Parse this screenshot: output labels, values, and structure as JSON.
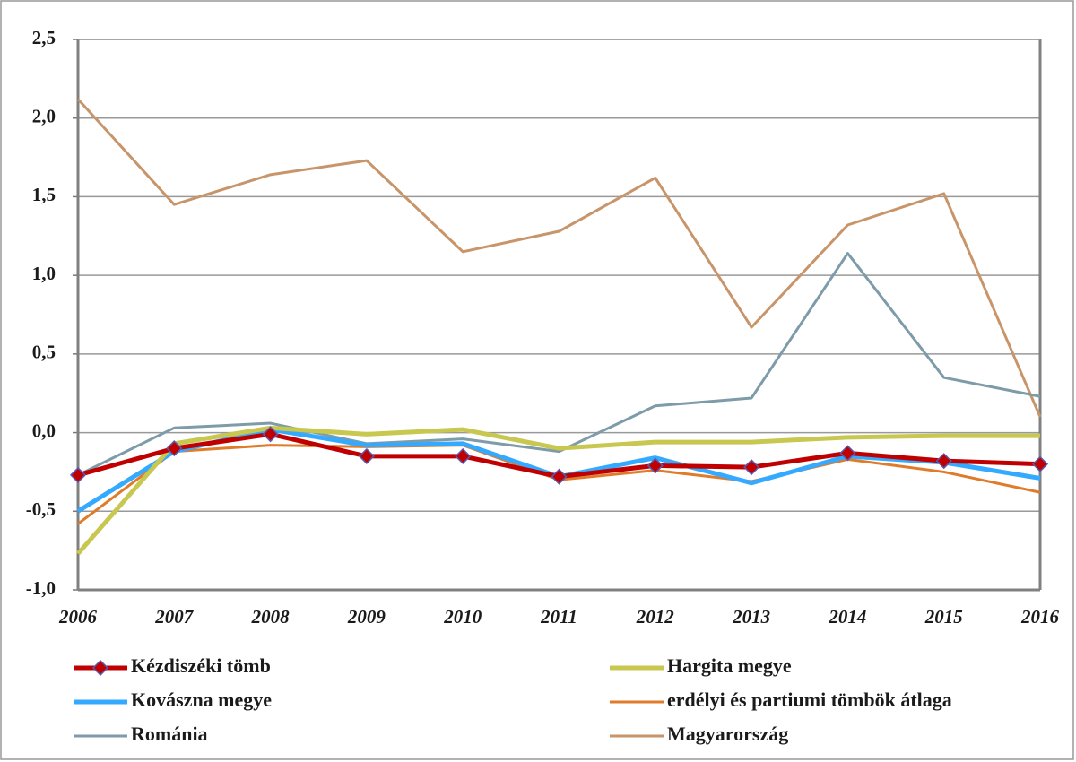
{
  "chart_data": {
    "type": "line",
    "categories": [
      "2006",
      "2007",
      "2008",
      "2009",
      "2010",
      "2011",
      "2012",
      "2013",
      "2014",
      "2015",
      "2016"
    ],
    "ylim": [
      -1.0,
      2.5
    ],
    "yticks": [
      {
        "value": -1.0,
        "label": "-1,0"
      },
      {
        "value": -0.5,
        "label": "-0,5"
      },
      {
        "value": 0,
        "label": "0,0"
      },
      {
        "value": 0.5,
        "label": "0,5"
      },
      {
        "value": 1.0,
        "label": "1,0"
      },
      {
        "value": 1.5,
        "label": "1,5"
      },
      {
        "value": 2.0,
        "label": "2,0"
      },
      {
        "value": 2.5,
        "label": "2,5"
      }
    ],
    "grid": true,
    "legend": "bottom",
    "series": [
      {
        "name": "Kézdiszéki tömb",
        "color": "#c00000",
        "marker": "diamond",
        "values": [
          -0.27,
          -0.1,
          -0.01,
          -0.15,
          -0.15,
          -0.28,
          -0.21,
          -0.22,
          -0.13,
          -0.18,
          -0.2
        ]
      },
      {
        "name": "Hargita megye",
        "color": "#c8c850",
        "values": [
          -0.77,
          -0.07,
          0.03,
          -0.01,
          0.02,
          -0.1,
          -0.06,
          -0.06,
          -0.03,
          -0.02,
          -0.02
        ]
      },
      {
        "name": "Kovászna megye",
        "color": "#33aaff",
        "values": [
          -0.5,
          -0.12,
          0.02,
          -0.08,
          -0.07,
          -0.28,
          -0.16,
          -0.32,
          -0.15,
          -0.19,
          -0.29
        ]
      },
      {
        "name": "erdélyi és partiumi tömbök átlaga",
        "color": "#e07b2a",
        "values": [
          -0.58,
          -0.12,
          -0.08,
          -0.09,
          -0.08,
          -0.3,
          -0.24,
          -0.31,
          -0.17,
          -0.25,
          -0.38
        ]
      },
      {
        "name": "Románia",
        "color": "#7d9ba8",
        "values": [
          -0.27,
          0.03,
          0.06,
          -0.07,
          -0.04,
          -0.12,
          0.17,
          0.22,
          1.14,
          0.35,
          0.23
        ]
      },
      {
        "name": "Magyarország",
        "color": "#c8956a",
        "values": [
          2.12,
          1.45,
          1.64,
          1.73,
          1.15,
          1.28,
          1.62,
          0.67,
          1.32,
          1.52,
          0.1
        ]
      }
    ]
  }
}
